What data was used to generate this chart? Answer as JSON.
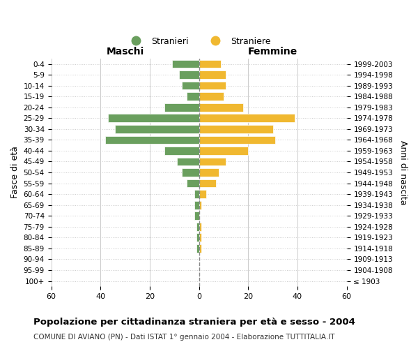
{
  "age_groups": [
    "100+",
    "95-99",
    "90-94",
    "85-89",
    "80-84",
    "75-79",
    "70-74",
    "65-69",
    "60-64",
    "55-59",
    "50-54",
    "45-49",
    "40-44",
    "35-39",
    "30-34",
    "25-29",
    "20-24",
    "15-19",
    "10-14",
    "5-9",
    "0-4"
  ],
  "birth_years": [
    "≤ 1903",
    "1904-1908",
    "1909-1913",
    "1914-1918",
    "1919-1923",
    "1924-1928",
    "1929-1933",
    "1934-1938",
    "1939-1943",
    "1944-1948",
    "1949-1953",
    "1954-1958",
    "1959-1963",
    "1964-1968",
    "1969-1973",
    "1974-1978",
    "1979-1983",
    "1984-1988",
    "1989-1993",
    "1994-1998",
    "1999-2003"
  ],
  "maschi": [
    0,
    0,
    0,
    1,
    1,
    1,
    2,
    2,
    2,
    5,
    7,
    9,
    14,
    38,
    34,
    37,
    14,
    5,
    7,
    8,
    11
  ],
  "femmine": [
    0,
    0,
    0,
    1,
    1,
    1,
    0,
    1,
    3,
    7,
    8,
    11,
    20,
    31,
    30,
    39,
    18,
    10,
    11,
    11,
    9
  ],
  "color_maschi": "#6a9f5e",
  "color_femmine": "#f0b830",
  "title": "Popolazione per cittadinanza straniera per età e sesso - 2004",
  "subtitle": "COMUNE DI AVIANO (PN) - Dati ISTAT 1° gennaio 2004 - Elaborazione TUTTITALIA.IT",
  "xlabel_left": "Maschi",
  "xlabel_right": "Femmine",
  "ylabel_left": "Fasce di età",
  "ylabel_right": "Anni di nascita",
  "legend_maschi": "Stranieri",
  "legend_femmine": "Straniere",
  "xlim": 60,
  "background_color": "#ffffff",
  "grid_color": "#cccccc"
}
